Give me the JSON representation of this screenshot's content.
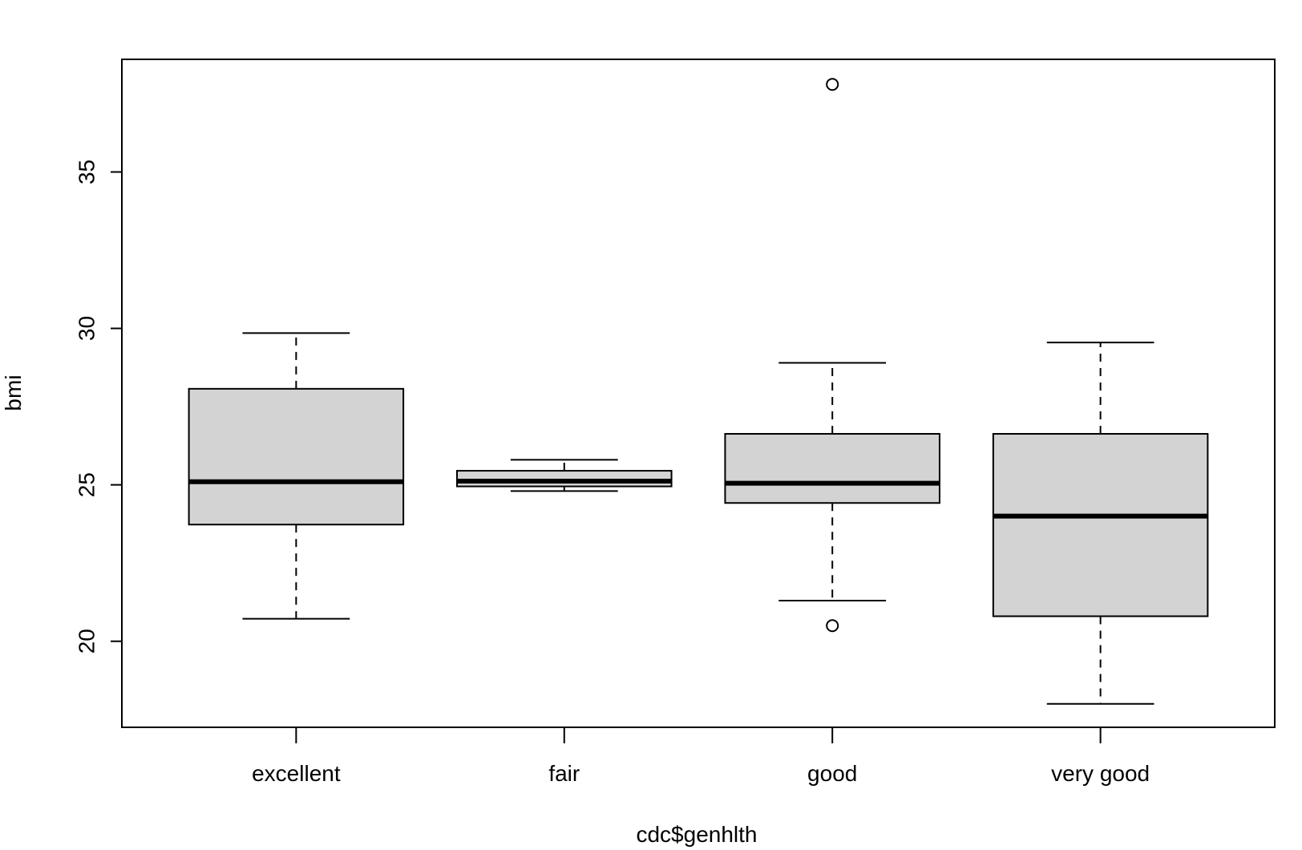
{
  "chart_data": {
    "type": "box",
    "title": "",
    "xlabel": "cdc$genhlth",
    "ylabel": "bmi",
    "ylim": [
      17.25,
      38.6
    ],
    "yticks": [
      20,
      25,
      30,
      35
    ],
    "grid": false,
    "categories": [
      "excellent",
      "fair",
      "good",
      "very good"
    ],
    "boxes": [
      {
        "category": "excellent",
        "whisker_low": 20.72,
        "q1": 23.73,
        "median": 25.1,
        "q3": 28.07,
        "whisker_high": 29.85,
        "outliers": []
      },
      {
        "category": "fair",
        "whisker_low": 24.8,
        "q1": 24.95,
        "median": 25.12,
        "q3": 25.45,
        "whisker_high": 25.8,
        "outliers": []
      },
      {
        "category": "good",
        "whisker_low": 21.3,
        "q1": 24.42,
        "median": 25.05,
        "q3": 26.63,
        "whisker_high": 28.9,
        "outliers": [
          20.5,
          37.8
        ]
      },
      {
        "category": "very good",
        "whisker_low": 18.0,
        "q1": 20.8,
        "median": 24.0,
        "q3": 26.63,
        "whisker_high": 29.55,
        "outliers": []
      }
    ],
    "colors": {
      "box_fill": "#d3d3d3",
      "stroke": "#000000"
    }
  }
}
